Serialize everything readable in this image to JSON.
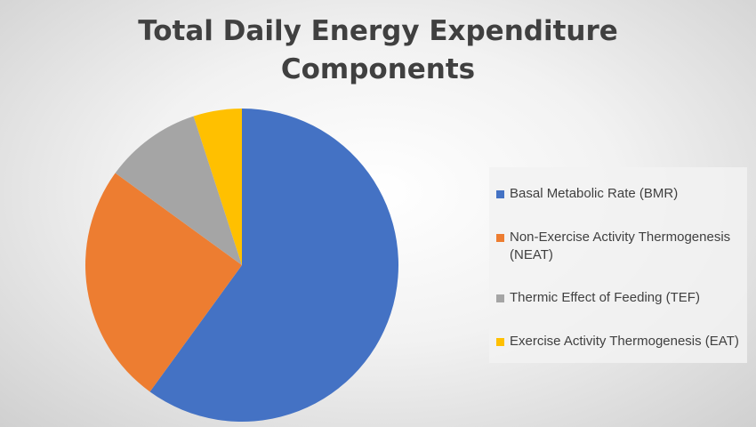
{
  "chart_data": {
    "type": "pie",
    "title": "Total Daily Energy Expenditure Components",
    "categories": [
      "Basal Metabolic Rate (BMR)",
      "Non-Exercise Activity Thermogenesis (NEAT)",
      "Thermic Effect of Feeding (TEF)",
      "Exercise Activity Thermogenesis (EAT)"
    ],
    "values": [
      60,
      25,
      10,
      5
    ],
    "colors": [
      "#4472c4",
      "#ed7d31",
      "#a5a5a5",
      "#ffc000"
    ],
    "legend": "right"
  }
}
